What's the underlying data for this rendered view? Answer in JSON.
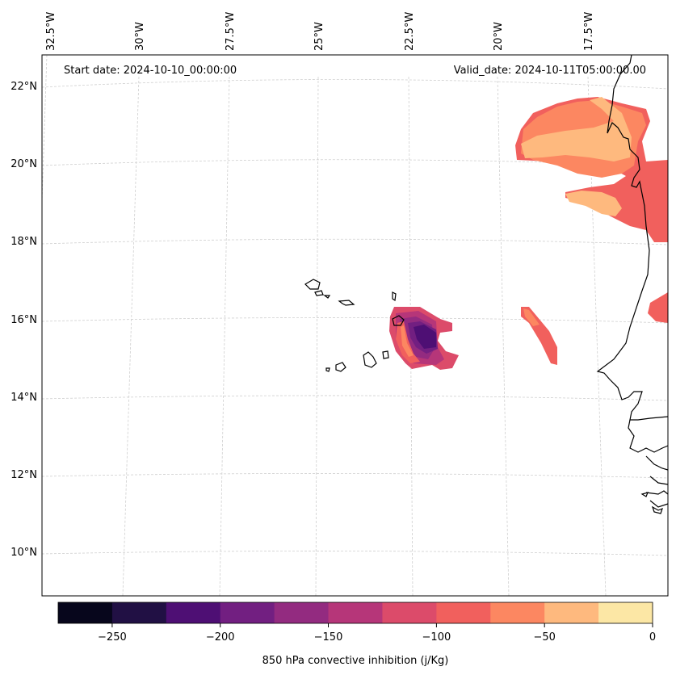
{
  "header": {
    "start_date": "Start date: 2024-10-10_00:00:00",
    "valid_date": "Valid_date: 2024-10-11T05:00:00.00"
  },
  "longitude_labels": [
    "32.5°W",
    "30°W",
    "27.5°W",
    "25°W",
    "22.5°W",
    "20°W",
    "17.5°W"
  ],
  "latitude_labels": [
    "22°N",
    "20°N",
    "18°N",
    "16°N",
    "14°N",
    "12°N",
    "10°N"
  ],
  "colorbar": {
    "title": "850 hPa convective inhibition (j/Kg)",
    "tick_labels": [
      "−250",
      "−200",
      "−150",
      "−100",
      "−50",
      "0"
    ],
    "levels": [
      -275,
      -250,
      -225,
      -200,
      -175,
      -150,
      -125,
      -100,
      -75,
      -50,
      -25,
      0
    ],
    "colors": [
      "#07061c",
      "#211044",
      "#4e0f74",
      "#721f81",
      "#932b80",
      "#b63679",
      "#dc4b6a",
      "#f1605d",
      "#fc8761",
      "#feb97e",
      "#fce7a5"
    ]
  },
  "map": {
    "region": "Cape Verde / West Africa",
    "field": "850 hPa convective inhibition"
  }
}
